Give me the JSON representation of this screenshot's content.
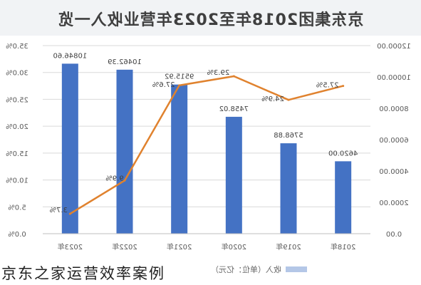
{
  "chart_data": {
    "type": "bar",
    "title": "京东集团2018年至2023年营业收入一览",
    "mirrored": true,
    "categories": [
      "2023年",
      "2022年",
      "2021年",
      "2020年",
      "2019年",
      "2018年"
    ],
    "series": [
      {
        "name": "收入（单位：亿元）",
        "type": "bar",
        "axis": "right",
        "values": [
          10846.6,
          10462.39,
          9515.92,
          7458.02,
          5768.88,
          4620.0
        ],
        "labels": [
          "10846.60",
          "10462.39",
          "9515.92",
          "7458.02",
          "5768.88",
          "4620.00"
        ],
        "color": "#4472c4"
      },
      {
        "type": "line",
        "axis": "left",
        "values": [
          3.7,
          9.9,
          27.6,
          29.3,
          24.9,
          27.5
        ],
        "labels": [
          "3.7%",
          "9.9%",
          "27.6%",
          "29.3%",
          "24.9%",
          "27.5%"
        ],
        "color": "#e0822e"
      }
    ],
    "left_axis": {
      "ticks": [
        "0.0%",
        "5.0%",
        "10.0%",
        "15.0%",
        "20.0%",
        "25.0%",
        "30.0%",
        "35.0%"
      ],
      "ylim": [
        0,
        35
      ]
    },
    "right_axis": {
      "ticks": [
        "0.00",
        "2000.00",
        "4000.00",
        "6000.00",
        "8000.00",
        "10000.00",
        "12000.00"
      ],
      "ylim": [
        0,
        12000
      ]
    },
    "grid": true,
    "legend": "bottom"
  },
  "caption": "京东之家运营效率案例",
  "colors": {
    "bar": "#4472c4",
    "line": "#e0822e",
    "grid": "#d9d9d9",
    "title_band": "#f1f3f5"
  }
}
